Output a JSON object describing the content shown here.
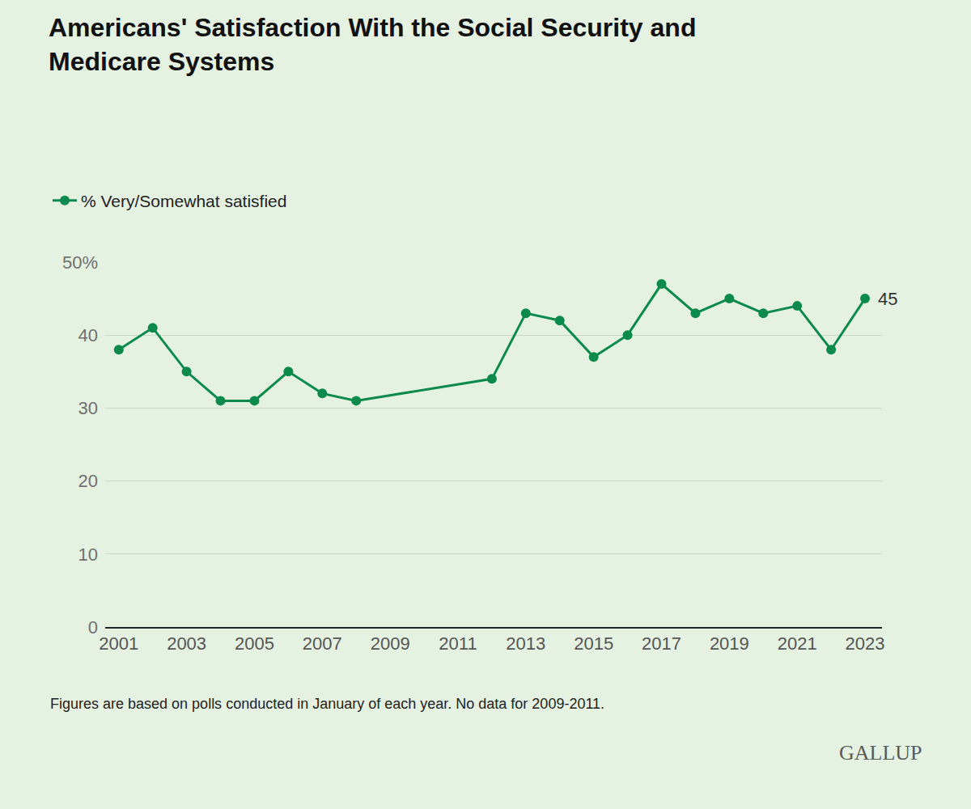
{
  "chart_data": {
    "type": "line",
    "title": "Americans' Satisfaction With the Social Security and Medicare Systems",
    "x": [
      2001,
      2002,
      2003,
      2004,
      2005,
      2006,
      2007,
      2008,
      2012,
      2013,
      2014,
      2015,
      2016,
      2017,
      2018,
      2019,
      2020,
      2021,
      2022,
      2023
    ],
    "series": [
      {
        "name": "% Very/Somewhat satisfied",
        "color": "#0b8a4b",
        "marker": "circle",
        "line_style": "solid",
        "values": [
          38,
          41,
          35,
          31,
          31,
          35,
          32,
          31,
          34,
          43,
          42,
          37,
          40,
          47,
          43,
          45,
          43,
          44,
          38,
          45
        ]
      }
    ],
    "xlim": [
      2000.6,
      2023.5
    ],
    "xticks": [
      2001,
      2003,
      2005,
      2007,
      2009,
      2011,
      2013,
      2015,
      2017,
      2019,
      2021,
      2023
    ],
    "ylim": [
      0,
      50
    ],
    "yticks": [
      0,
      10,
      20,
      30,
      40,
      {
        "value": 50,
        "label": "50%"
      }
    ],
    "grid": true,
    "legend": "top-left",
    "annotations": [
      {
        "x": 2023,
        "y": 45,
        "text": "45"
      }
    ],
    "note": "Figures are based on polls conducted in January of each year. No data for 2009-2011.",
    "source": "GALLUP"
  }
}
